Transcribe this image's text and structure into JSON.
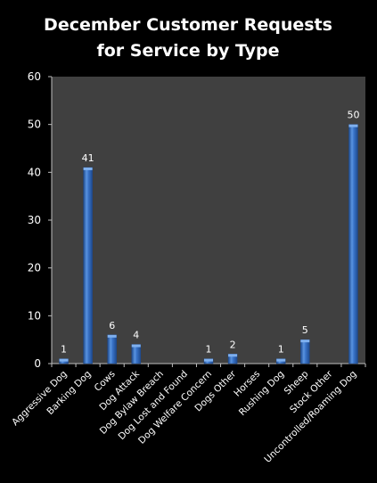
{
  "chart_data": {
    "type": "bar",
    "title": [
      "December Customer Requests",
      "for Service by Type"
    ],
    "categories": [
      "Aggressive Dog",
      "Barking Dog",
      "Cows",
      "Dog Attack",
      "Dog Bylaw Breach",
      "Dog Lost and Found",
      "Dog Welfare Concern",
      "Dogs Other",
      "Horses",
      "Rushing Dog",
      "Sheep",
      "Stock Other",
      "Uncontrolled/Roaming Dog"
    ],
    "values": [
      1,
      41,
      6,
      4,
      0,
      0,
      1,
      2,
      0,
      1,
      5,
      0,
      50
    ],
    "data_labels": [
      "1",
      "41",
      "6",
      "4",
      "",
      "",
      "1",
      "2",
      "",
      "1",
      "5",
      "",
      "50"
    ],
    "ylim": [
      0,
      60
    ],
    "yticks": [
      0,
      10,
      20,
      30,
      40,
      50,
      60
    ],
    "grid": false,
    "legend": "none",
    "colors": {
      "background": "#000000",
      "plot_area": "#404040",
      "bar": "#3a74c9",
      "bar_highlight": "#7fb0ee",
      "bar_shadow": "#1e4a8e",
      "axis": "#bfbfbf",
      "text": "#ffffff"
    }
  }
}
